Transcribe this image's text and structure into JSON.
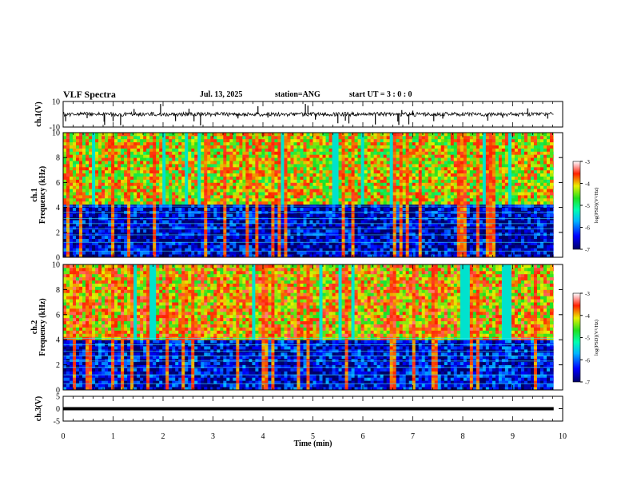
{
  "header": {
    "title": "VLF Spectra",
    "date": "Jul. 13, 2025",
    "station": "station=ANG",
    "start": "start UT =  3 : 0 : 0"
  },
  "chart_data": [
    {
      "type": "line",
      "title": "",
      "ylabel": "ch.1(V)",
      "ylim": [
        -10,
        10
      ],
      "yticks": [
        "10",
        "-10"
      ],
      "x_unit": "min",
      "xlim": [
        0,
        10
      ],
      "baseline_value": 0,
      "description_series": "broadband waveform with impulsive sferic spikes",
      "spike_times_min": [
        0.05,
        0.48,
        0.82,
        0.83,
        1.0,
        1.15,
        1.42,
        1.95,
        2.25,
        2.52,
        2.62,
        2.75,
        3.5,
        3.9,
        4.1,
        4.85,
        4.9,
        5.05,
        5.5,
        5.65,
        5.72,
        6.25,
        6.7,
        6.72,
        6.78,
        6.92,
        7.0,
        7.42,
        7.6,
        8.5,
        8.8,
        9.3,
        9.7
      ]
    },
    {
      "type": "heatmap",
      "title": "",
      "ylabel": "ch.1\nFrequency (kHz)",
      "ylim": [
        0,
        10
      ],
      "yticks": [
        "0",
        "2",
        "4",
        "6",
        "8",
        "10"
      ],
      "xlim": [
        0,
        10
      ],
      "x_unit": "min",
      "colorbar": {
        "label": "log(PSD)(V²/Hz)",
        "range": [
          -7,
          -3
        ],
        "ticks": [
          "-3",
          "-4",
          "-5",
          "-6",
          "-7"
        ]
      },
      "regions": [
        {
          "freq_kHz": [
            0,
            4.2
          ],
          "log_psd": -6.6,
          "note": "quiet band"
        },
        {
          "freq_kHz": [
            4.2,
            10
          ],
          "log_psd": -4.2,
          "note": "strong sferic activity"
        }
      ]
    },
    {
      "type": "heatmap",
      "title": "",
      "ylabel": "ch.2\nFrequency (kHz)",
      "ylim": [
        0,
        10
      ],
      "yticks": [
        "0",
        "2",
        "4",
        "6",
        "8",
        "10"
      ],
      "xlim": [
        0,
        10
      ],
      "x_unit": "min",
      "colorbar": {
        "label": "log(PSD)(V²/Hz)",
        "range": [
          -7,
          -3
        ],
        "ticks": [
          "-3",
          "-4",
          "-5",
          "-6",
          "-7"
        ]
      },
      "regions": [
        {
          "freq_kHz": [
            0,
            3.8
          ],
          "log_psd": -6.5,
          "note": "quiet band"
        },
        {
          "freq_kHz": [
            3.8,
            10
          ],
          "log_psd": -4.0,
          "note": "strong sferic activity"
        }
      ]
    },
    {
      "type": "line",
      "title": "",
      "ylabel": "ch.3(V)",
      "ylim": [
        -5,
        5
      ],
      "yticks": [
        "5",
        "0",
        "-5"
      ],
      "xlim": [
        0,
        10
      ],
      "x_unit": "min",
      "x": [
        0,
        9.82
      ],
      "y": [
        0,
        0
      ]
    }
  ],
  "axis": {
    "xlabel": "Time (min)",
    "xticks": [
      "0",
      "1",
      "2",
      "3",
      "4",
      "5",
      "6",
      "7",
      "8",
      "9",
      "10"
    ]
  }
}
